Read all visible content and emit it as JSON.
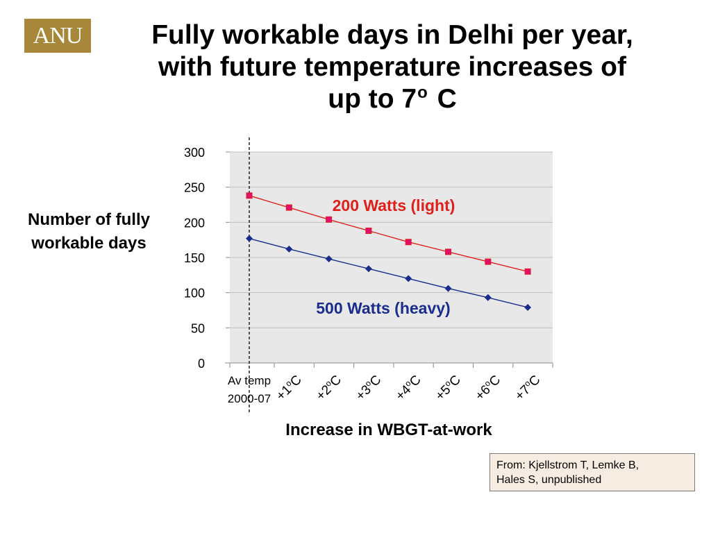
{
  "logo": {
    "text": "ANU"
  },
  "title": {
    "line1": "Fully workable days in Delhi per year,",
    "line2": "with future temperature increases of",
    "line3_pre": "up to 7",
    "line3_sup": "o",
    "line3_post": " C"
  },
  "ylabel": "Number of fully workable days",
  "xlabel": "Increase in WBGT-at-work",
  "source": "From: Kjellstrom T, Lemke B,\nHales S,  unpublished",
  "colors": {
    "light": "#e0201b",
    "heavy": "#1a2d8c",
    "marker_light": "#e0106e",
    "plot_bg": "#e8e8e8",
    "grid": "#c0c0c0",
    "logo_bg": "#a7883a"
  },
  "chart_data": {
    "type": "line",
    "title": "Fully workable days in Delhi per year, with future temperature increases of up to 7o C",
    "xlabel": "Increase in WBGT-at-work",
    "ylabel": "Number of fully workable days",
    "ylim": [
      0,
      300
    ],
    "yticks": [
      0,
      50,
      100,
      150,
      200,
      250,
      300
    ],
    "grid": true,
    "categories": [
      {
        "base": "Av temp",
        "line2": "2000-07"
      },
      {
        "base": "+1",
        "sup": "o",
        "post": "C"
      },
      {
        "base": "+2",
        "sup": "o",
        "post": "C"
      },
      {
        "base": "+3",
        "sup": "o",
        "post": "C"
      },
      {
        "base": "+4",
        "sup": "o",
        "post": "C"
      },
      {
        "base": "+5",
        "sup": "o",
        "post": "C"
      },
      {
        "base": "+6",
        "sup": "o",
        "post": "C"
      },
      {
        "base": "+7",
        "sup": "o",
        "post": "C"
      }
    ],
    "series": [
      {
        "name": "200 Watts (light)",
        "values": [
          238,
          221,
          204,
          188,
          172,
          158,
          144,
          130
        ],
        "color": "#e0201b",
        "marker": "square"
      },
      {
        "name": "500 Watts (heavy)",
        "values": [
          177,
          162,
          148,
          134,
          120,
          106,
          93,
          79
        ],
        "color": "#1a2d8c",
        "marker": "diamond"
      }
    ]
  }
}
